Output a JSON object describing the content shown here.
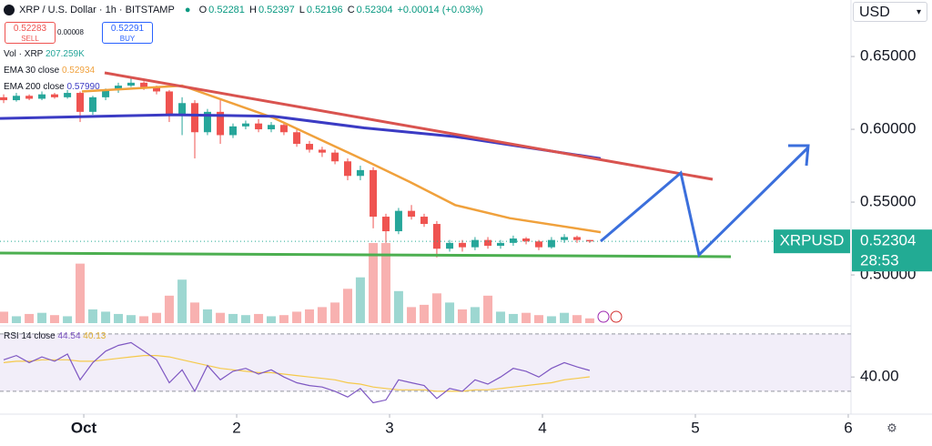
{
  "header": {
    "symbol": "XRP / U.S. Dollar · 1h · BITSTAMP",
    "ohlc": [
      [
        "O",
        "0.52281"
      ],
      [
        "H",
        "0.52397"
      ],
      [
        "L",
        "0.52196"
      ],
      [
        "C",
        "0.52304"
      ]
    ],
    "change": "+0.00014 (+0.03%)",
    "sell": {
      "price": "0.52283",
      "label": "SELL"
    },
    "spread": "0.00008",
    "buy": {
      "price": "0.52291",
      "label": "BUY"
    },
    "currency": "USD"
  },
  "chart_data": {
    "type": "candlestick",
    "x": [
      0.476,
      0.559,
      0.643,
      0.726,
      0.809,
      0.893,
      0.976,
      1.059,
      1.143,
      1.226,
      1.309,
      1.393,
      1.476,
      1.559,
      1.643,
      1.726,
      1.809,
      1.893,
      1.976,
      2.059,
      2.143,
      2.226,
      2.309,
      2.393,
      2.476,
      2.559,
      2.643,
      2.726,
      2.809,
      2.893,
      2.976,
      3.059,
      3.143,
      3.226,
      3.309,
      3.393,
      3.476,
      3.559,
      3.643,
      3.726,
      3.809,
      3.893,
      3.976,
      4.059,
      4.143,
      4.226,
      4.309
    ],
    "open": [
      0.622,
      0.62,
      0.623,
      0.621,
      0.624,
      0.622,
      0.625,
      0.612,
      0.622,
      0.627,
      0.63,
      0.632,
      0.629,
      0.626,
      0.61,
      0.618,
      0.598,
      0.612,
      0.596,
      0.602,
      0.604,
      0.6,
      0.603,
      0.598,
      0.59,
      0.586,
      0.584,
      0.578,
      0.568,
      0.572,
      0.54,
      0.53,
      0.544,
      0.54,
      0.535,
      0.518,
      0.522,
      0.519,
      0.524,
      0.52,
      0.522,
      0.525,
      0.523,
      0.519,
      0.524,
      0.526,
      0.524
    ],
    "high": [
      0.624,
      0.625,
      0.624,
      0.626,
      0.625,
      0.627,
      0.626,
      0.623,
      0.628,
      0.632,
      0.636,
      0.633,
      0.63,
      0.627,
      0.622,
      0.62,
      0.614,
      0.62,
      0.604,
      0.606,
      0.607,
      0.605,
      0.605,
      0.6,
      0.592,
      0.588,
      0.586,
      0.58,
      0.575,
      0.574,
      0.542,
      0.546,
      0.548,
      0.542,
      0.537,
      0.524,
      0.524,
      0.526,
      0.526,
      0.524,
      0.527,
      0.526,
      0.524,
      0.526,
      0.528,
      0.527,
      0.52397
    ],
    "low": [
      0.618,
      0.619,
      0.62,
      0.62,
      0.621,
      0.621,
      0.605,
      0.61,
      0.62,
      0.625,
      0.629,
      0.627,
      0.624,
      0.605,
      0.596,
      0.58,
      0.596,
      0.59,
      0.594,
      0.6,
      0.598,
      0.598,
      0.596,
      0.588,
      0.584,
      0.581,
      0.576,
      0.565,
      0.565,
      0.532,
      0.522,
      0.528,
      0.538,
      0.533,
      0.512,
      0.516,
      0.516,
      0.517,
      0.518,
      0.518,
      0.52,
      0.521,
      0.517,
      0.518,
      0.522,
      0.522,
      0.52196
    ],
    "close": [
      0.62,
      0.623,
      0.621,
      0.624,
      0.622,
      0.625,
      0.612,
      0.622,
      0.627,
      0.63,
      0.632,
      0.629,
      0.626,
      0.61,
      0.618,
      0.598,
      0.612,
      0.596,
      0.602,
      0.604,
      0.6,
      0.603,
      0.598,
      0.59,
      0.586,
      0.584,
      0.578,
      0.568,
      0.572,
      0.54,
      0.53,
      0.544,
      0.54,
      0.535,
      0.518,
      0.522,
      0.519,
      0.524,
      0.52,
      0.522,
      0.525,
      0.523,
      0.519,
      0.524,
      0.526,
      0.524,
      0.52304
    ],
    "up_color": "#26a69a",
    "down_color": "#ef5350",
    "volume_name": "Vol · XRP",
    "volume": [
      500,
      300,
      400,
      450,
      350,
      300,
      2600,
      600,
      500,
      400,
      350,
      300,
      450,
      1200,
      1900,
      900,
      600,
      450,
      400,
      350,
      400,
      300,
      350,
      500,
      600,
      700,
      900,
      1500,
      2000,
      3500,
      3500,
      1400,
      700,
      800,
      1300,
      900,
      600,
      700,
      1200,
      500,
      400,
      450,
      350,
      300,
      450,
      350,
      207.259
    ],
    "volume_label": "207.259K",
    "series": [
      {
        "name": "EMA 30 close",
        "color": "#f0a13c",
        "x": [
          0.988,
          1.643,
          2.238,
          2.833,
          3.131,
          3.429,
          3.786,
          4.381
        ],
        "values": [
          0.626,
          0.63,
          0.608,
          0.579,
          0.564,
          0.548,
          0.539,
          0.52934
        ],
        "last_label": "0.52934"
      },
      {
        "name": "EMA 200 close",
        "color": "#3b3bc4",
        "x": [
          0.452,
          1.583,
          2.238,
          2.833,
          3.429,
          4.381
        ],
        "values": [
          0.6075,
          0.61,
          0.609,
          0.601,
          0.595,
          0.5799
        ],
        "last_label": "0.57990"
      }
    ],
    "xlim": [
      0.452,
      6.018
    ],
    "xticks": [
      {
        "value": 1,
        "label": "Oct"
      },
      2,
      3,
      4,
      5,
      6
    ],
    "ylim": [
      0.4669,
      0.6888
    ],
    "yticks": [
      {
        "value": 0.65,
        "label": "0.65000"
      },
      {
        "value": 0.6,
        "label": "0.60000"
      },
      {
        "value": 0.55,
        "label": "0.55000"
      },
      {
        "value": 0.5,
        "label": "0.50000"
      }
    ],
    "last": {
      "symbol": "XRPUSD",
      "price": {
        "value": 0.52304,
        "label": "0.52304"
      },
      "countdown": "28:53",
      "color": "#22ab94"
    },
    "rsi": {
      "name": "RSI 14 close",
      "color": "#7e57c2",
      "ma_color": "#f5c94a",
      "values": [
        52,
        55,
        50,
        54,
        51,
        56,
        38,
        50,
        58,
        62,
        64,
        58,
        52,
        36,
        45,
        30,
        48,
        38,
        44,
        46,
        42,
        45,
        40,
        36,
        34,
        33,
        30,
        26,
        32,
        22,
        24,
        38,
        36,
        34,
        25,
        32,
        30,
        38,
        35,
        40,
        46,
        44,
        40,
        46,
        50,
        47,
        44.54
      ],
      "value_label": "44.54",
      "ma": [
        50,
        51,
        51,
        52,
        52,
        52,
        51,
        51,
        52,
        53,
        54,
        55,
        55,
        54,
        52,
        50,
        48,
        46,
        45,
        44,
        43,
        43,
        42,
        41,
        40,
        39,
        38,
        36,
        35,
        33,
        32,
        31,
        31,
        31,
        30,
        30,
        30,
        31,
        31,
        32,
        33,
        34,
        35,
        36,
        38,
        39,
        40.13
      ],
      "ma_label": "40.13",
      "ylim": [
        23.6,
        74.4
      ],
      "bands": [
        30,
        70
      ],
      "yticks": [
        {
          "value": 40,
          "label": "40.00"
        }
      ]
    }
  }
}
